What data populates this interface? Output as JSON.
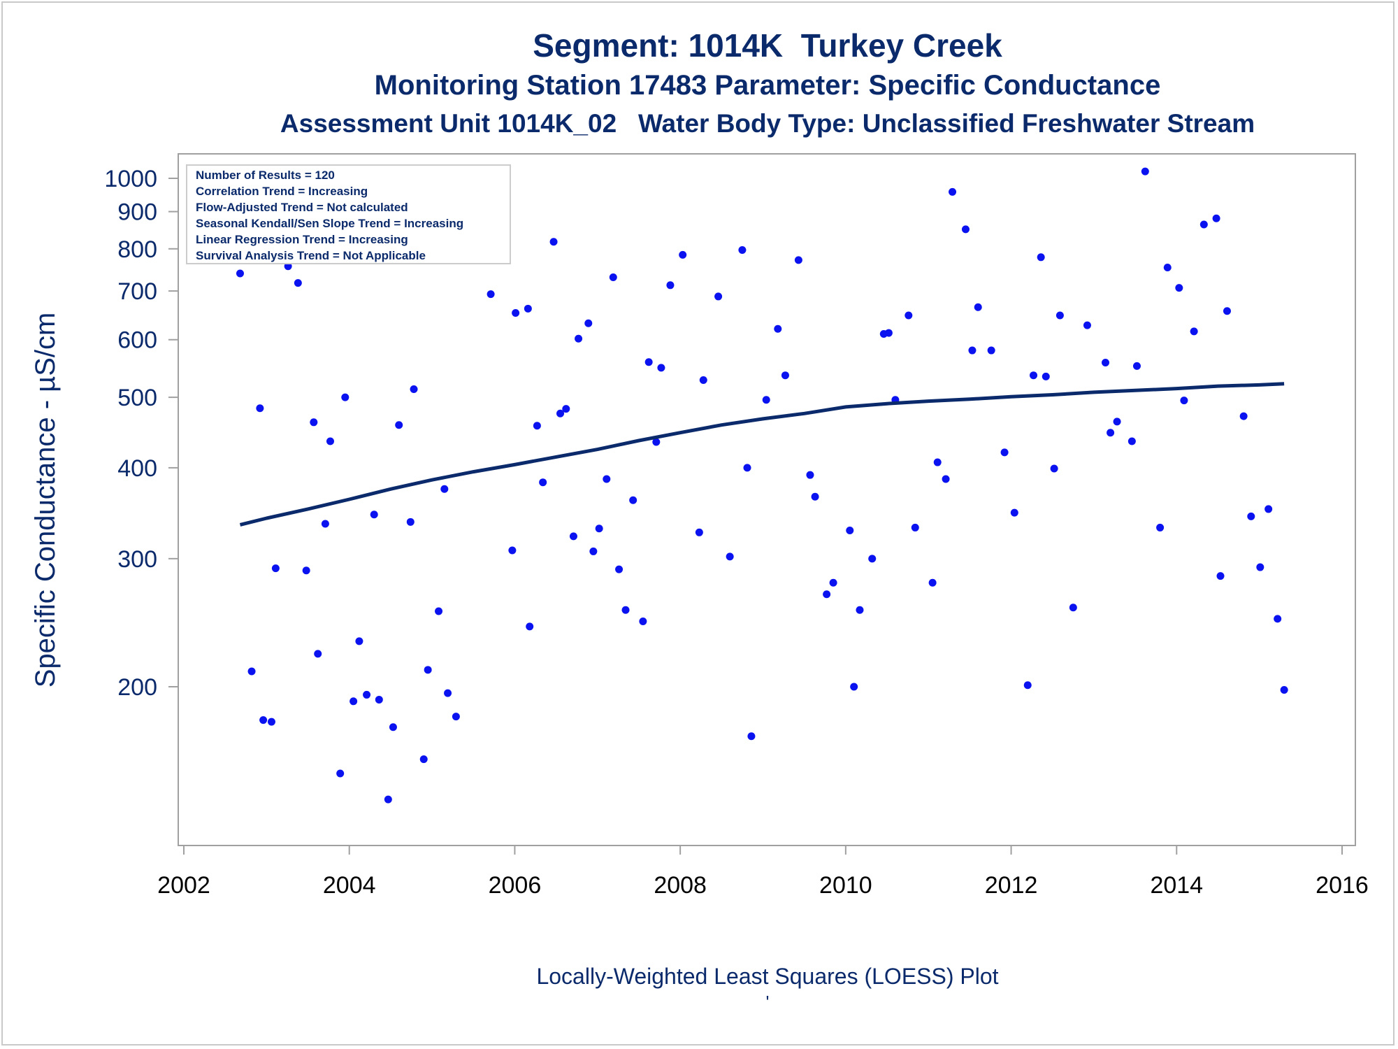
{
  "chart_data": {
    "type": "scatter",
    "title": "Segment: 1014K  Turkey Creek",
    "subtitle": "Monitoring Station 17483 Parameter: Specific Conductance",
    "subtitle2": "Assessment Unit 1014K_02   Water Body Type: Unclassified Freshwater Stream",
    "xlabel": "",
    "ylabel": "Specific Conductance -  µS/cm",
    "footer": "Locally-Weighted Least Squares (LOESS) Plot",
    "footer_mark": "'",
    "xlim": [
      2002,
      2016
    ],
    "ylim": [
      137,
      1050
    ],
    "y_scale": "log",
    "grid": false,
    "xticks": [
      2002,
      2004,
      2006,
      2008,
      2010,
      2012,
      2014,
      2016
    ],
    "yticks": [
      200,
      300,
      400,
      500,
      600,
      700,
      800,
      900,
      1000
    ],
    "legend_position": "top-left",
    "stats_box": [
      "Number of Results = 120",
      "Correlation Trend = Increasing",
      "Flow-Adjusted Trend = Not calculated",
      "Seasonal Kendall/Sen Slope Trend = Increasing",
      "Linear Regression Trend = Increasing",
      "Survival Analysis Trend = Not Applicable"
    ],
    "colors": {
      "points": "#0a12f0",
      "loess_line": "#0b2a6b",
      "text": "#0b2a6b",
      "axis": "#a0a0a0"
    },
    "series": [
      {
        "type": "scatter",
        "points": [
          [
            2002.68,
            740
          ],
          [
            2002.82,
            210
          ],
          [
            2002.92,
            483
          ],
          [
            2002.96,
            180
          ],
          [
            2003.06,
            179
          ],
          [
            2003.11,
            291
          ],
          [
            2003.26,
            757
          ],
          [
            2003.38,
            718
          ],
          [
            2003.48,
            289
          ],
          [
            2003.57,
            462
          ],
          [
            2003.62,
            222
          ],
          [
            2003.71,
            335
          ],
          [
            2003.77,
            435
          ],
          [
            2003.89,
            152
          ],
          [
            2003.95,
            500
          ],
          [
            2004.05,
            191
          ],
          [
            2004.12,
            231
          ],
          [
            2004.21,
            195
          ],
          [
            2004.3,
            345
          ],
          [
            2004.36,
            192
          ],
          [
            2004.47,
            140
          ],
          [
            2004.53,
            176
          ],
          [
            2004.6,
            458
          ],
          [
            2004.74,
            337
          ],
          [
            2004.78,
            513
          ],
          [
            2004.9,
            159
          ],
          [
            2004.95,
            211
          ],
          [
            2005.08,
            254
          ],
          [
            2005.15,
            374
          ],
          [
            2005.19,
            196
          ],
          [
            2005.29,
            182
          ],
          [
            2005.71,
            693
          ],
          [
            2005.97,
            308
          ],
          [
            2006.01,
            653
          ],
          [
            2006.16,
            662
          ],
          [
            2006.18,
            242
          ],
          [
            2006.27,
            457
          ],
          [
            2006.34,
            382
          ],
          [
            2006.47,
            818
          ],
          [
            2006.55,
            475
          ],
          [
            2006.62,
            482
          ],
          [
            2006.71,
            322
          ],
          [
            2006.77,
            602
          ],
          [
            2006.89,
            632
          ],
          [
            2006.95,
            307
          ],
          [
            2007.02,
            330
          ],
          [
            2007.11,
            386
          ],
          [
            2007.19,
            731
          ],
          [
            2007.26,
            290
          ],
          [
            2007.34,
            255
          ],
          [
            2007.43,
            361
          ],
          [
            2007.55,
            246
          ],
          [
            2007.62,
            559
          ],
          [
            2007.71,
            434
          ],
          [
            2007.77,
            549
          ],
          [
            2007.88,
            713
          ],
          [
            2008.03,
            785
          ],
          [
            2008.23,
            326
          ],
          [
            2008.28,
            528
          ],
          [
            2008.46,
            688
          ],
          [
            2008.6,
            302
          ],
          [
            2008.75,
            797
          ],
          [
            2008.81,
            400
          ],
          [
            2008.86,
            171
          ],
          [
            2009.04,
            496
          ],
          [
            2009.18,
            621
          ],
          [
            2009.27,
            536
          ],
          [
            2009.43,
            772
          ],
          [
            2009.57,
            391
          ],
          [
            2009.63,
            365
          ],
          [
            2009.77,
            268
          ],
          [
            2009.85,
            278
          ],
          [
            2010.05,
            328
          ],
          [
            2010.1,
            200
          ],
          [
            2010.17,
            255
          ],
          [
            2010.32,
            300
          ],
          [
            2010.46,
            611
          ],
          [
            2010.52,
            613
          ],
          [
            2010.6,
            496
          ],
          [
            2010.76,
            648
          ],
          [
            2010.84,
            331
          ],
          [
            2011.05,
            278
          ],
          [
            2011.11,
            407
          ],
          [
            2011.21,
            386
          ],
          [
            2011.29,
            958
          ],
          [
            2011.45,
            851
          ],
          [
            2011.53,
            580
          ],
          [
            2011.6,
            665
          ],
          [
            2011.76,
            580
          ],
          [
            2011.92,
            420
          ],
          [
            2012.04,
            347
          ],
          [
            2012.2,
            201
          ],
          [
            2012.27,
            536
          ],
          [
            2012.36,
            779
          ],
          [
            2012.42,
            534
          ],
          [
            2012.52,
            399
          ],
          [
            2012.59,
            648
          ],
          [
            2012.75,
            257
          ],
          [
            2012.92,
            628
          ],
          [
            2013.14,
            558
          ],
          [
            2013.2,
            447
          ],
          [
            2013.28,
            463
          ],
          [
            2013.46,
            435
          ],
          [
            2013.52,
            552
          ],
          [
            2013.62,
            1022
          ],
          [
            2013.8,
            331
          ],
          [
            2013.89,
            754
          ],
          [
            2014.03,
            707
          ],
          [
            2014.09,
            495
          ],
          [
            2014.21,
            616
          ],
          [
            2014.33,
            864
          ],
          [
            2014.48,
            881
          ],
          [
            2014.53,
            284
          ],
          [
            2014.61,
            657
          ],
          [
            2014.81,
            471
          ],
          [
            2014.9,
            343
          ],
          [
            2015.01,
            292
          ],
          [
            2015.11,
            351
          ],
          [
            2015.22,
            248
          ],
          [
            2015.3,
            198
          ]
        ]
      },
      {
        "type": "line",
        "points": [
          [
            2002.68,
            334
          ],
          [
            2003.0,
            341
          ],
          [
            2003.5,
            351
          ],
          [
            2004.0,
            362
          ],
          [
            2004.5,
            374
          ],
          [
            2005.0,
            385
          ],
          [
            2005.5,
            395
          ],
          [
            2006.0,
            404
          ],
          [
            2006.5,
            414
          ],
          [
            2007.0,
            424
          ],
          [
            2007.5,
            436
          ],
          [
            2008.0,
            447
          ],
          [
            2008.5,
            458
          ],
          [
            2009.0,
            467
          ],
          [
            2009.5,
            475
          ],
          [
            2010.0,
            485
          ],
          [
            2010.5,
            490
          ],
          [
            2011.0,
            494
          ],
          [
            2011.5,
            497
          ],
          [
            2012.0,
            501
          ],
          [
            2012.5,
            504
          ],
          [
            2013.0,
            508
          ],
          [
            2013.5,
            511
          ],
          [
            2014.0,
            514
          ],
          [
            2014.5,
            518
          ],
          [
            2015.0,
            520
          ],
          [
            2015.3,
            522
          ]
        ]
      }
    ]
  }
}
